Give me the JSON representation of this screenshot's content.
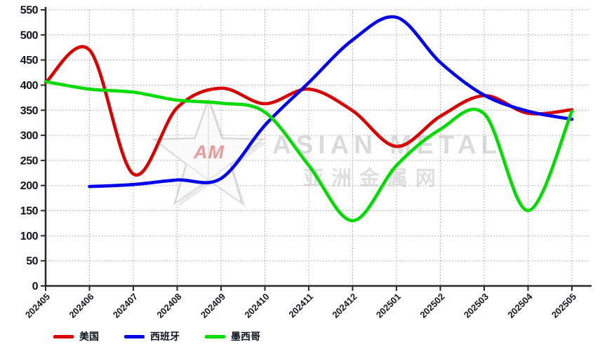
{
  "chart_data": {
    "type": "line",
    "title": "",
    "xlabel": "",
    "ylabel": "",
    "categories": [
      "202405",
      "202406",
      "202407",
      "202408",
      "202409",
      "202410",
      "202411",
      "202412",
      "202501",
      "202502",
      "202503",
      "202504",
      "202505"
    ],
    "series": [
      {
        "name": "美国",
        "color": "#d90000",
        "values": [
          405,
          470,
          223,
          355,
          394,
          363,
          392,
          349,
          278,
          338,
          379,
          344,
          351
        ]
      },
      {
        "name": "西班牙",
        "color": "#0000ee",
        "values": [
          null,
          198,
          202,
          211,
          214,
          320,
          405,
          490,
          535,
          445,
          380,
          348,
          332
        ]
      },
      {
        "name": "墨西哥",
        "color": "#00dc00",
        "values": [
          407,
          392,
          386,
          370,
          364,
          346,
          240,
          130,
          240,
          312,
          343,
          150,
          348
        ]
      }
    ],
    "ylim": [
      0,
      550
    ],
    "ytick_step": 50,
    "yticks": [
      0,
      50,
      100,
      150,
      200,
      250,
      300,
      350,
      400,
      450,
      500,
      550
    ],
    "grid": "dotted",
    "legend_position": "bottom-left"
  },
  "watermark": {
    "logo_text": "AM",
    "brand": "ASIAN METAL",
    "brand_cn": "亚洲金属网"
  },
  "colors": {
    "background": "#ffffff",
    "axis": "#2a2a2a",
    "grid": "#a2a2a2",
    "tick_label": "#10101c",
    "watermark_gray": "#c6c6c6",
    "watermark_red": "#d43c3c"
  }
}
